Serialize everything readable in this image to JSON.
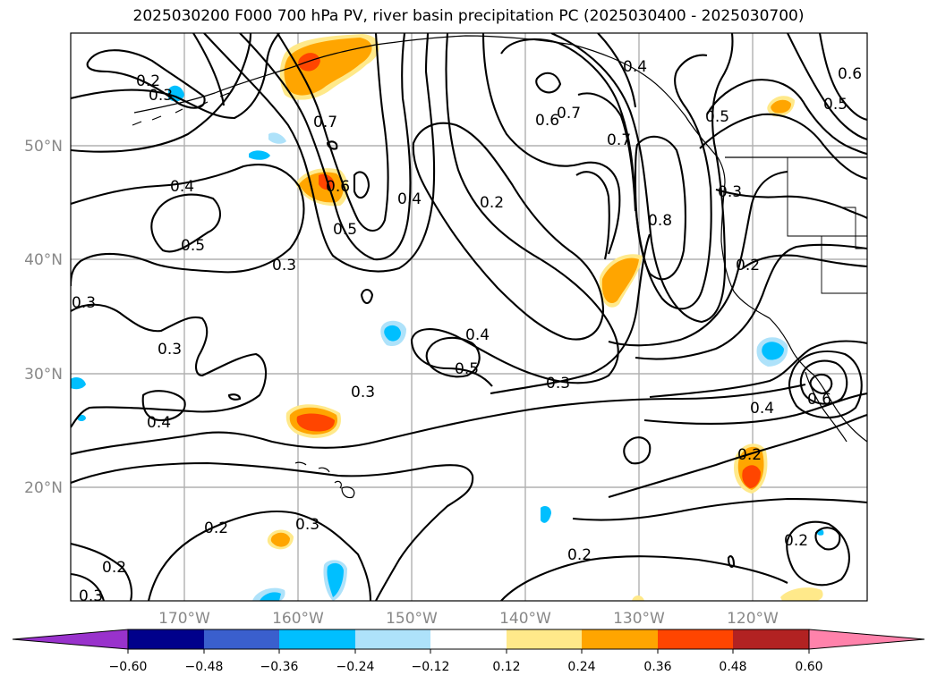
{
  "title": "2025030200 F000 700 hPa PV, river basin precipitation PC (2025030400 - 2025030700)",
  "lon_labels": [
    "170°W",
    "160°W",
    "150°W",
    "140°W",
    "130°W",
    "120°W"
  ],
  "lat_labels": [
    "50°N",
    "40°N",
    "30°N",
    "20°N"
  ],
  "contour_labels": [
    {
      "text": "0.2",
      "name": "contour-label-0-2-nw"
    },
    {
      "text": "0.3",
      "name": "contour-label-0-3-nw"
    },
    {
      "text": "0.4",
      "name": "contour-label-0-4-w"
    },
    {
      "text": "0.5",
      "name": "contour-label-0-5-w"
    },
    {
      "text": "0.3",
      "name": "contour-label-0-3-w-edge"
    },
    {
      "text": "0.3",
      "name": "contour-label-0-3-w2"
    },
    {
      "text": "0.4",
      "name": "contour-label-0-4-sw"
    },
    {
      "text": "0.2",
      "name": "contour-label-0-2-sw"
    },
    {
      "text": "0.2",
      "name": "contour-label-0-2-s"
    },
    {
      "text": "0.3",
      "name": "contour-label-0-3-s"
    },
    {
      "text": "0.3",
      "name": "contour-label-0-3-sw-corner"
    },
    {
      "text": "0.3",
      "name": "contour-label-0-3-central"
    },
    {
      "text": "0.7",
      "name": "contour-label-0-7-west"
    },
    {
      "text": "0.6",
      "name": "contour-label-0-6-trough"
    },
    {
      "text": "0.5",
      "name": "contour-label-0-5-trough"
    },
    {
      "text": "0.4",
      "name": "contour-label-0-4-trough"
    },
    {
      "text": "0.3",
      "name": "contour-label-0-3-trough"
    },
    {
      "text": "0.2",
      "name": "contour-label-0-2-mid"
    },
    {
      "text": "0.4",
      "name": "contour-label-0-4-mid"
    },
    {
      "text": "0.5",
      "name": "contour-label-0-5-mid"
    },
    {
      "text": "0.3",
      "name": "contour-label-0-3-mid"
    },
    {
      "text": "0.6",
      "name": "contour-label-0-6-ridge"
    },
    {
      "text": "0.7",
      "name": "contour-label-0-7-ridge"
    },
    {
      "text": "0.4",
      "name": "contour-label-0-4-ridge"
    },
    {
      "text": "0.7",
      "name": "contour-label-0-7-ridge2"
    },
    {
      "text": "0.8",
      "name": "contour-label-0-8-ridge"
    },
    {
      "text": "0.5",
      "name": "contour-label-0-5-ne"
    },
    {
      "text": "0.5",
      "name": "contour-label-0-5-ne-edge"
    },
    {
      "text": "0.6",
      "name": "contour-label-0-6-ne-edge"
    },
    {
      "text": "0.3",
      "name": "contour-label-0-3-coast"
    },
    {
      "text": "0.2",
      "name": "contour-label-0-2-coast"
    },
    {
      "text": "0.4",
      "name": "contour-label-0-4-low"
    },
    {
      "text": "0.6",
      "name": "contour-label-0-6-low"
    },
    {
      "text": "0.2",
      "name": "contour-label-0-2-baja"
    },
    {
      "text": "0.2",
      "name": "contour-label-0-2-se"
    },
    {
      "text": "0.2",
      "name": "contour-label-0-2-se2"
    }
  ],
  "colorbar": {
    "colors": [
      "#9932CC",
      "#00008B",
      "#3A5FCD",
      "#00BFFF",
      "#AEE2FA",
      "#FFFFFF",
      "#FFE98A",
      "#FFA500",
      "#FF4500",
      "#B22222",
      "#FF82AB"
    ],
    "tick_labels": [
      "−0.60",
      "−0.48",
      "−0.36",
      "−0.24",
      "−0.12",
      "0.12",
      "0.24",
      "0.36",
      "0.48",
      "0.60"
    ]
  }
}
